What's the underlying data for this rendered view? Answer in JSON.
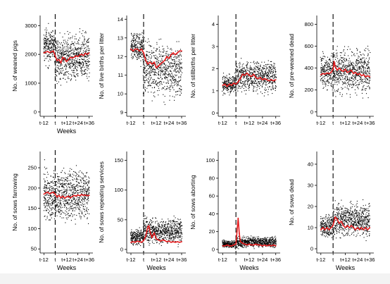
{
  "colors": {
    "points": "#000000",
    "mean_line": "#e31a1c",
    "marker": "#000000",
    "page": "#ffffff"
  },
  "chart_data": [
    {
      "type": "scatter",
      "ylabel": "No. of weaned pigs",
      "xlabel": "Weeks",
      "x_ticks": [
        "t-12",
        "t",
        "t+12",
        "t+24",
        "t+36"
      ],
      "xlim": [
        -16,
        40
      ],
      "yticks": [
        0,
        1000,
        2000,
        3000
      ],
      "ylim": [
        -150,
        3350
      ],
      "event_line": "t",
      "spread": {
        "pre_low": 1450,
        "pre_high": 3150,
        "post_low": 750,
        "post_high": 3050
      },
      "mean": [
        {
          "x": -12,
          "y": 2050
        },
        {
          "x": -10,
          "y": 2080
        },
        {
          "x": -8,
          "y": 2100
        },
        {
          "x": -6,
          "y": 2060
        },
        {
          "x": -4,
          "y": 2090
        },
        {
          "x": -2,
          "y": 2120
        },
        {
          "x": 0,
          "y": 1950
        },
        {
          "x": 2,
          "y": 1780
        },
        {
          "x": 4,
          "y": 1820
        },
        {
          "x": 6,
          "y": 1700
        },
        {
          "x": 8,
          "y": 1900
        },
        {
          "x": 10,
          "y": 1850
        },
        {
          "x": 12,
          "y": 1750
        },
        {
          "x": 14,
          "y": 1820
        },
        {
          "x": 16,
          "y": 1900
        },
        {
          "x": 18,
          "y": 1870
        },
        {
          "x": 20,
          "y": 1900
        },
        {
          "x": 22,
          "y": 1950
        },
        {
          "x": 24,
          "y": 1920
        },
        {
          "x": 26,
          "y": 1980
        },
        {
          "x": 28,
          "y": 2000
        },
        {
          "x": 30,
          "y": 1960
        },
        {
          "x": 32,
          "y": 2040
        },
        {
          "x": 34,
          "y": 2000
        },
        {
          "x": 36,
          "y": 2050
        }
      ]
    },
    {
      "type": "scatter",
      "ylabel": "No. of live births per litter",
      "xlabel": "",
      "x_ticks": [
        "t-12",
        "t",
        "t+12",
        "t+24",
        "t+36"
      ],
      "xlim": [
        -16,
        40
      ],
      "yticks": [
        9,
        10,
        11,
        12,
        13,
        14
      ],
      "ylim": [
        8.8,
        14.2
      ],
      "event_line": "t",
      "spread": {
        "pre_low": 11.4,
        "pre_high": 13.6,
        "post_low": 9.3,
        "post_high": 13.3
      },
      "mean": [
        {
          "x": -12,
          "y": 12.4
        },
        {
          "x": -10,
          "y": 12.3
        },
        {
          "x": -8,
          "y": 12.4
        },
        {
          "x": -6,
          "y": 12.4
        },
        {
          "x": -4,
          "y": 12.3
        },
        {
          "x": -2,
          "y": 12.4
        },
        {
          "x": 0,
          "y": 12.2
        },
        {
          "x": 2,
          "y": 11.8
        },
        {
          "x": 4,
          "y": 11.6
        },
        {
          "x": 6,
          "y": 11.7
        },
        {
          "x": 8,
          "y": 11.6
        },
        {
          "x": 10,
          "y": 11.7
        },
        {
          "x": 12,
          "y": 11.4
        },
        {
          "x": 14,
          "y": 11.5
        },
        {
          "x": 16,
          "y": 11.6
        },
        {
          "x": 18,
          "y": 11.7
        },
        {
          "x": 20,
          "y": 11.8
        },
        {
          "x": 22,
          "y": 12.0
        },
        {
          "x": 24,
          "y": 11.9
        },
        {
          "x": 26,
          "y": 12.1
        },
        {
          "x": 28,
          "y": 12.2
        },
        {
          "x": 30,
          "y": 12.1
        },
        {
          "x": 32,
          "y": 12.2
        },
        {
          "x": 34,
          "y": 12.3
        },
        {
          "x": 36,
          "y": 12.3
        }
      ]
    },
    {
      "type": "scatter",
      "ylabel": "No. of stillbirths per litter",
      "xlabel": "",
      "x_ticks": [
        "t-12",
        "t",
        "t+12",
        "t+24",
        "t+36"
      ],
      "xlim": [
        -16,
        40
      ],
      "yticks": [
        0,
        1,
        2,
        3,
        4
      ],
      "ylim": [
        -0.15,
        4.4
      ],
      "event_line": "t",
      "spread": {
        "pre_low": 0.7,
        "pre_high": 1.9,
        "post_low": 0.7,
        "post_high": 2.6
      },
      "mean": [
        {
          "x": -12,
          "y": 1.25
        },
        {
          "x": -10,
          "y": 1.3
        },
        {
          "x": -8,
          "y": 1.2
        },
        {
          "x": -6,
          "y": 1.3
        },
        {
          "x": -4,
          "y": 1.25
        },
        {
          "x": -2,
          "y": 1.35
        },
        {
          "x": 0,
          "y": 1.3
        },
        {
          "x": 2,
          "y": 1.4
        },
        {
          "x": 4,
          "y": 1.55
        },
        {
          "x": 6,
          "y": 1.75
        },
        {
          "x": 8,
          "y": 1.7
        },
        {
          "x": 10,
          "y": 1.8
        },
        {
          "x": 12,
          "y": 1.7
        },
        {
          "x": 14,
          "y": 1.65
        },
        {
          "x": 16,
          "y": 1.75
        },
        {
          "x": 18,
          "y": 1.6
        },
        {
          "x": 20,
          "y": 1.55
        },
        {
          "x": 22,
          "y": 1.6
        },
        {
          "x": 24,
          "y": 1.5
        },
        {
          "x": 26,
          "y": 1.55
        },
        {
          "x": 28,
          "y": 1.5
        },
        {
          "x": 30,
          "y": 1.45
        },
        {
          "x": 32,
          "y": 1.5
        },
        {
          "x": 34,
          "y": 1.45
        },
        {
          "x": 36,
          "y": 1.5
        }
      ]
    },
    {
      "type": "scatter",
      "ylabel": "No. of pre-weaned dead",
      "xlabel": "",
      "x_ticks": [
        "t-12",
        "t",
        "t+12",
        "t+24",
        "t+36"
      ],
      "xlim": [
        -16,
        40
      ],
      "yticks": [
        0,
        200,
        400,
        600,
        800
      ],
      "ylim": [
        -40,
        880
      ],
      "event_line": "t",
      "spread": {
        "pre_low": 150,
        "pre_high": 580,
        "post_low": 90,
        "post_high": 640
      },
      "mean": [
        {
          "x": -12,
          "y": 340
        },
        {
          "x": -10,
          "y": 350
        },
        {
          "x": -8,
          "y": 345
        },
        {
          "x": -6,
          "y": 355
        },
        {
          "x": -4,
          "y": 350
        },
        {
          "x": -2,
          "y": 360
        },
        {
          "x": 0,
          "y": 390
        },
        {
          "x": 1,
          "y": 460
        },
        {
          "x": 2,
          "y": 420
        },
        {
          "x": 4,
          "y": 380
        },
        {
          "x": 6,
          "y": 400
        },
        {
          "x": 8,
          "y": 380
        },
        {
          "x": 10,
          "y": 370
        },
        {
          "x": 12,
          "y": 390
        },
        {
          "x": 14,
          "y": 360
        },
        {
          "x": 16,
          "y": 370
        },
        {
          "x": 18,
          "y": 380
        },
        {
          "x": 20,
          "y": 350
        },
        {
          "x": 22,
          "y": 360
        },
        {
          "x": 24,
          "y": 340
        },
        {
          "x": 26,
          "y": 350
        },
        {
          "x": 28,
          "y": 330
        },
        {
          "x": 30,
          "y": 340
        },
        {
          "x": 32,
          "y": 320
        },
        {
          "x": 34,
          "y": 330
        },
        {
          "x": 36,
          "y": 320
        }
      ]
    },
    {
      "type": "scatter",
      "ylabel": "No. of sows farrowing",
      "xlabel": "Weeks",
      "x_ticks": [
        "t-12",
        "t",
        "t+12",
        "t+24",
        "t+36"
      ],
      "xlim": [
        -16,
        40
      ],
      "yticks": [
        50,
        100,
        150,
        200,
        250
      ],
      "ylim": [
        40,
        290
      ],
      "event_line": "t",
      "spread": {
        "pre_low": 90,
        "pre_high": 275,
        "post_low": 100,
        "post_high": 265
      },
      "mean": [
        {
          "x": -12,
          "y": 185
        },
        {
          "x": -10,
          "y": 188
        },
        {
          "x": -8,
          "y": 190
        },
        {
          "x": -6,
          "y": 186
        },
        {
          "x": -4,
          "y": 188
        },
        {
          "x": -2,
          "y": 190
        },
        {
          "x": 0,
          "y": 185
        },
        {
          "x": 2,
          "y": 178
        },
        {
          "x": 4,
          "y": 182
        },
        {
          "x": 6,
          "y": 176
        },
        {
          "x": 8,
          "y": 180
        },
        {
          "x": 10,
          "y": 175
        },
        {
          "x": 12,
          "y": 178
        },
        {
          "x": 14,
          "y": 180
        },
        {
          "x": 16,
          "y": 176
        },
        {
          "x": 18,
          "y": 179
        },
        {
          "x": 20,
          "y": 182
        },
        {
          "x": 22,
          "y": 180
        },
        {
          "x": 24,
          "y": 183
        },
        {
          "x": 26,
          "y": 181
        },
        {
          "x": 28,
          "y": 184
        },
        {
          "x": 30,
          "y": 182
        },
        {
          "x": 32,
          "y": 183
        },
        {
          "x": 34,
          "y": 181
        },
        {
          "x": 36,
          "y": 182
        }
      ]
    },
    {
      "type": "scatter",
      "ylabel": "No. of sows repeating services",
      "xlabel": "Weeks",
      "x_ticks": [
        "t-12",
        "t",
        "t+12",
        "t+24",
        "t+36"
      ],
      "xlim": [
        -16,
        40
      ],
      "yticks": [
        0,
        50,
        100,
        150
      ],
      "ylim": [
        -6,
        165
      ],
      "event_line": "t",
      "spread": {
        "pre_low": 2,
        "pre_high": 40,
        "post_low": 2,
        "post_high": 60
      },
      "mean": [
        {
          "x": -12,
          "y": 12
        },
        {
          "x": -10,
          "y": 13
        },
        {
          "x": -8,
          "y": 12
        },
        {
          "x": -6,
          "y": 14
        },
        {
          "x": -4,
          "y": 13
        },
        {
          "x": -2,
          "y": 12
        },
        {
          "x": 0,
          "y": 15
        },
        {
          "x": 2,
          "y": 22
        },
        {
          "x": 4,
          "y": 38
        },
        {
          "x": 5,
          "y": 40
        },
        {
          "x": 6,
          "y": 30
        },
        {
          "x": 8,
          "y": 20
        },
        {
          "x": 10,
          "y": 28
        },
        {
          "x": 12,
          "y": 18
        },
        {
          "x": 14,
          "y": 16
        },
        {
          "x": 16,
          "y": 14
        },
        {
          "x": 18,
          "y": 16
        },
        {
          "x": 20,
          "y": 15
        },
        {
          "x": 22,
          "y": 13
        },
        {
          "x": 24,
          "y": 14
        },
        {
          "x": 26,
          "y": 12
        },
        {
          "x": 28,
          "y": 13
        },
        {
          "x": 30,
          "y": 12
        },
        {
          "x": 32,
          "y": 13
        },
        {
          "x": 34,
          "y": 12
        },
        {
          "x": 36,
          "y": 13
        }
      ]
    },
    {
      "type": "scatter",
      "ylabel": "No. of sows aborting",
      "xlabel": "Weeks",
      "x_ticks": [
        "t-12",
        "t",
        "t+12",
        "t+24",
        "t+36"
      ],
      "xlim": [
        -16,
        40
      ],
      "yticks": [
        0,
        20,
        40,
        60,
        80,
        100
      ],
      "ylim": [
        -4,
        110
      ],
      "event_line": "t",
      "spread": {
        "pre_low": 0,
        "pre_high": 12,
        "post_low": 0,
        "post_high": 16
      },
      "mean": [
        {
          "x": -12,
          "y": 4
        },
        {
          "x": -10,
          "y": 4
        },
        {
          "x": -8,
          "y": 5
        },
        {
          "x": -6,
          "y": 4
        },
        {
          "x": -4,
          "y": 4
        },
        {
          "x": -2,
          "y": 5
        },
        {
          "x": 0,
          "y": 6
        },
        {
          "x": 1,
          "y": 20
        },
        {
          "x": 2,
          "y": 35
        },
        {
          "x": 3,
          "y": 18
        },
        {
          "x": 4,
          "y": 9
        },
        {
          "x": 6,
          "y": 7
        },
        {
          "x": 8,
          "y": 6
        },
        {
          "x": 10,
          "y": 5
        },
        {
          "x": 12,
          "y": 6
        },
        {
          "x": 14,
          "y": 5
        },
        {
          "x": 16,
          "y": 5
        },
        {
          "x": 18,
          "y": 6
        },
        {
          "x": 20,
          "y": 5
        },
        {
          "x": 22,
          "y": 5
        },
        {
          "x": 24,
          "y": 4
        },
        {
          "x": 26,
          "y": 5
        },
        {
          "x": 28,
          "y": 4
        },
        {
          "x": 30,
          "y": 5
        },
        {
          "x": 32,
          "y": 4
        },
        {
          "x": 34,
          "y": 5
        },
        {
          "x": 36,
          "y": 4
        }
      ]
    },
    {
      "type": "scatter",
      "ylabel": "No. of sows dead",
      "xlabel": "Weeks",
      "x_ticks": [
        "t-12",
        "t",
        "t+12",
        "t+24",
        "t+36"
      ],
      "xlim": [
        -16,
        40
      ],
      "yticks": [
        0,
        10,
        20,
        30,
        40
      ],
      "ylim": [
        -2,
        46
      ],
      "event_line": "t",
      "spread": {
        "pre_low": 3,
        "pre_high": 18,
        "post_low": 3,
        "post_high": 24
      },
      "mean": [
        {
          "x": -12,
          "y": 9
        },
        {
          "x": -10,
          "y": 10
        },
        {
          "x": -8,
          "y": 9
        },
        {
          "x": -6,
          "y": 10
        },
        {
          "x": -4,
          "y": 9
        },
        {
          "x": -2,
          "y": 10
        },
        {
          "x": 0,
          "y": 11
        },
        {
          "x": 2,
          "y": 15
        },
        {
          "x": 4,
          "y": 14
        },
        {
          "x": 6,
          "y": 12
        },
        {
          "x": 8,
          "y": 13
        },
        {
          "x": 10,
          "y": 11
        },
        {
          "x": 12,
          "y": 10
        },
        {
          "x": 14,
          "y": 11
        },
        {
          "x": 16,
          "y": 10
        },
        {
          "x": 18,
          "y": 11
        },
        {
          "x": 20,
          "y": 10
        },
        {
          "x": 22,
          "y": 9
        },
        {
          "x": 24,
          "y": 10
        },
        {
          "x": 26,
          "y": 9
        },
        {
          "x": 28,
          "y": 10
        },
        {
          "x": 30,
          "y": 9
        },
        {
          "x": 32,
          "y": 10
        },
        {
          "x": 34,
          "y": 9
        },
        {
          "x": 36,
          "y": 10
        }
      ]
    }
  ]
}
